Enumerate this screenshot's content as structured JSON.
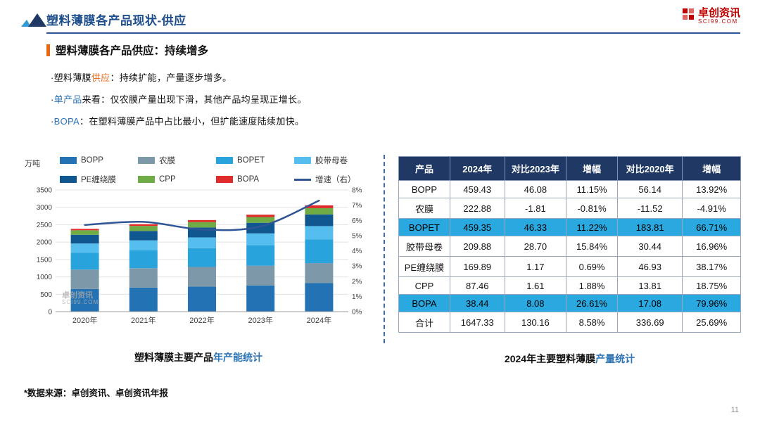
{
  "header": {
    "title": "塑料薄膜各产品现状-供应",
    "logo_name": "卓创资讯",
    "logo_sub": "SCI99.COM"
  },
  "section": {
    "heading": "塑料薄膜各产品供应：持续增多",
    "bullets": [
      {
        "prefix": "·塑料薄膜",
        "highlight": "供应",
        "rest": "：持续扩能，产量逐步增多。",
        "color": "#ED6C1F"
      },
      {
        "prefix": "·",
        "highlight": "单产品",
        "rest": "来看：仅农膜产量出现下滑，其他产品均呈现正增长。",
        "color": "#2E75B6"
      },
      {
        "prefix": "·",
        "highlight": "BOPA",
        "rest": "：在塑料薄膜产品中占比最小，但扩能速度陆续加快。",
        "color": "#2E75B6"
      }
    ]
  },
  "chart_data": {
    "type": "bar",
    "subtype": "stacked-bar-with-line",
    "unit_left": "万吨",
    "categories": [
      "2020年",
      "2021年",
      "2022年",
      "2023年",
      "2024年"
    ],
    "series": [
      {
        "name": "BOPP",
        "color": "#2272B4",
        "values": [
          650,
          690,
          720,
          750,
          820
        ]
      },
      {
        "name": "农膜",
        "color": "#7D98A9",
        "values": [
          560,
          560,
          565,
          570,
          575
        ]
      },
      {
        "name": "BOPET",
        "color": "#29A3DC",
        "values": [
          480,
          510,
          540,
          590,
          680
        ]
      },
      {
        "name": "胶带母卷",
        "color": "#55BEEE",
        "values": [
          270,
          290,
          310,
          340,
          385
        ]
      },
      {
        "name": "PE缠绕膜",
        "color": "#10568F",
        "values": [
          250,
          270,
          285,
          305,
          335
        ]
      },
      {
        "name": "CPP",
        "color": "#6FAC46",
        "values": [
          130,
          145,
          155,
          165,
          180
        ]
      },
      {
        "name": "BOPA",
        "color": "#E02B2B",
        "values": [
          40,
          50,
          58,
          68,
          82
        ]
      }
    ],
    "line_series": {
      "name": "增速（右）",
      "color": "#2F5597",
      "values": [
        5.7,
        5.9,
        5.4,
        5.6,
        7.3
      ]
    },
    "ylim_left": [
      0,
      3500
    ],
    "yticks_left": [
      0,
      500,
      1000,
      1500,
      2000,
      2500,
      3000,
      3500
    ],
    "ylim_right": [
      0,
      8
    ],
    "yticks_right": [
      "0%",
      "1%",
      "2%",
      "3%",
      "4%",
      "5%",
      "6%",
      "7%",
      "8%"
    ],
    "grid": true,
    "legend_position": "top",
    "title": "塑料薄膜主要产品年产能统计"
  },
  "chart_caption": {
    "black": "塑料薄膜主要产品",
    "blue": "年产能统计"
  },
  "watermark": {
    "line1": "卓创资讯",
    "line2": "SCI99.COM"
  },
  "table": {
    "headers": [
      "产品",
      "2024年",
      "对比2023年",
      "增幅",
      "对比2020年",
      "增幅"
    ],
    "rows": [
      {
        "cells": [
          "BOPP",
          "459.43",
          "46.08",
          "11.15%",
          "56.14",
          "13.92%"
        ],
        "highlight": false
      },
      {
        "cells": [
          "农膜",
          "222.88",
          "-1.81",
          "-0.81%",
          "-11.52",
          "-4.91%"
        ],
        "highlight": false
      },
      {
        "cells": [
          "BOPET",
          "459.35",
          "46.33",
          "11.22%",
          "183.81",
          "66.71%"
        ],
        "highlight": true
      },
      {
        "cells": [
          "胶带母卷",
          "209.88",
          "28.70",
          "15.84%",
          "30.44",
          "16.96%"
        ],
        "highlight": false
      },
      {
        "cells": [
          "PE缠绕膜",
          "169.89",
          "1.17",
          "0.69%",
          "46.93",
          "38.17%"
        ],
        "highlight": false
      },
      {
        "cells": [
          "CPP",
          "87.46",
          "1.61",
          "1.88%",
          "13.81",
          "18.75%"
        ],
        "highlight": false
      },
      {
        "cells": [
          "BOPA",
          "38.44",
          "8.08",
          "26.61%",
          "17.08",
          "79.96%"
        ],
        "highlight": true
      },
      {
        "cells": [
          "合计",
          "1647.33",
          "130.16",
          "8.58%",
          "336.69",
          "25.69%"
        ],
        "highlight": false
      }
    ]
  },
  "table_caption": {
    "black": "2024年主要塑料薄膜",
    "blue": "产量统计"
  },
  "footer": {
    "source": "*数据来源：卓创资讯、卓创资讯年报",
    "page": "11"
  },
  "colors": {
    "title_blue": "#1E4F8C",
    "rule_blue": "#2F5597",
    "orange_accent": "#E8680F",
    "blue_highlight": "#2E75B6",
    "table_header_bg": "#1F3864",
    "table_row_highlight": "#29A9E0",
    "divider_blue": "#3B6CB4",
    "logo_red": "#C00000"
  }
}
